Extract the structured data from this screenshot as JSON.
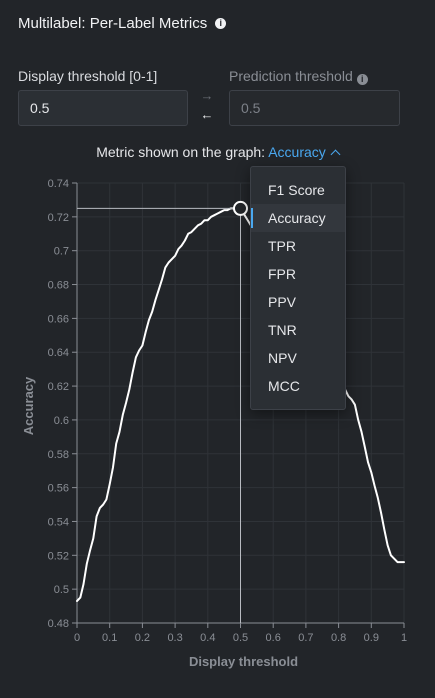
{
  "panel": {
    "title": "Multilabel: Per-Label Metrics",
    "info_icon": "info-icon"
  },
  "display_threshold": {
    "label": "Display threshold [0-1]",
    "value": "0.5"
  },
  "prediction_threshold": {
    "label": "Prediction threshold",
    "value": "0.5",
    "disabled": true
  },
  "sync": {
    "right_arrow": "→",
    "left_arrow": "←"
  },
  "metric_selector": {
    "prefix": "Metric shown on the graph:",
    "selected": "Accuracy",
    "options": [
      "F1 Score",
      "Accuracy",
      "TPR",
      "FPR",
      "PPV",
      "TNR",
      "NPV",
      "MCC"
    ],
    "selected_index": 1
  },
  "colors": {
    "background": "#222529",
    "accent": "#4aa8f0",
    "line": "#ffffff",
    "grid": "#2f3338",
    "axis_text": "#8a8e95"
  },
  "chart_data": {
    "type": "line",
    "xlabel": "Display threshold",
    "ylabel": "Accuracy",
    "xlim": [
      0,
      1
    ],
    "ylim": [
      0.48,
      0.74
    ],
    "xticks": [
      0,
      0.1,
      0.2,
      0.3,
      0.4,
      0.5,
      0.6,
      0.7,
      0.8,
      0.9,
      1
    ],
    "xtick_labels": [
      "0",
      "0.1",
      "0.2",
      "0.3",
      "0.4",
      "0.5",
      "0.6",
      "0.7",
      "0.8",
      "0.9",
      "1"
    ],
    "yticks": [
      0.48,
      0.5,
      0.52,
      0.54,
      0.56,
      0.58,
      0.6,
      0.62,
      0.64,
      0.66,
      0.68,
      0.7,
      0.72,
      0.74
    ],
    "ytick_labels": [
      "0.48",
      "0.5",
      "0.52",
      "0.54",
      "0.56",
      "0.58",
      "0.6",
      "0.62",
      "0.64",
      "0.66",
      "0.68",
      "0.7",
      "0.72",
      "0.74"
    ],
    "grid": true,
    "marker": {
      "x": 0.5,
      "y": 0.725
    },
    "series": [
      {
        "x": [
          0,
          0.01,
          0.02,
          0.03,
          0.04,
          0.05,
          0.06,
          0.07,
          0.08,
          0.09,
          0.1,
          0.11,
          0.12,
          0.13,
          0.14,
          0.15,
          0.16,
          0.17,
          0.18,
          0.19,
          0.2,
          0.21,
          0.22,
          0.23,
          0.24,
          0.25,
          0.26,
          0.27,
          0.28,
          0.29,
          0.3,
          0.31,
          0.32,
          0.33,
          0.34,
          0.35,
          0.36,
          0.37,
          0.38,
          0.39,
          0.4,
          0.41,
          0.42,
          0.43,
          0.44,
          0.45,
          0.46,
          0.47,
          0.48,
          0.49,
          0.5,
          0.8,
          0.81,
          0.82,
          0.83,
          0.84,
          0.85,
          0.86,
          0.87,
          0.88,
          0.89,
          0.9,
          0.91,
          0.92,
          0.93,
          0.94,
          0.95,
          0.96,
          0.97,
          0.98,
          0.99,
          1
        ],
        "y": [
          0.493,
          0.495,
          0.503,
          0.515,
          0.523,
          0.53,
          0.543,
          0.548,
          0.55,
          0.553,
          0.562,
          0.572,
          0.586,
          0.593,
          0.603,
          0.61,
          0.618,
          0.628,
          0.637,
          0.641,
          0.644,
          0.652,
          0.659,
          0.664,
          0.671,
          0.677,
          0.683,
          0.69,
          0.693,
          0.695,
          0.697,
          0.701,
          0.703,
          0.706,
          0.71,
          0.711,
          0.713,
          0.715,
          0.716,
          0.718,
          0.718,
          0.72,
          0.721,
          0.722,
          0.723,
          0.724,
          0.724,
          0.725,
          0.725,
          0.725,
          0.725,
          0.63,
          0.624,
          0.618,
          0.614,
          0.612,
          0.609,
          0.6,
          0.593,
          0.584,
          0.575,
          0.569,
          0.561,
          0.554,
          0.545,
          0.535,
          0.526,
          0.52,
          0.518,
          0.516,
          0.516,
          0.516
        ]
      }
    ]
  }
}
